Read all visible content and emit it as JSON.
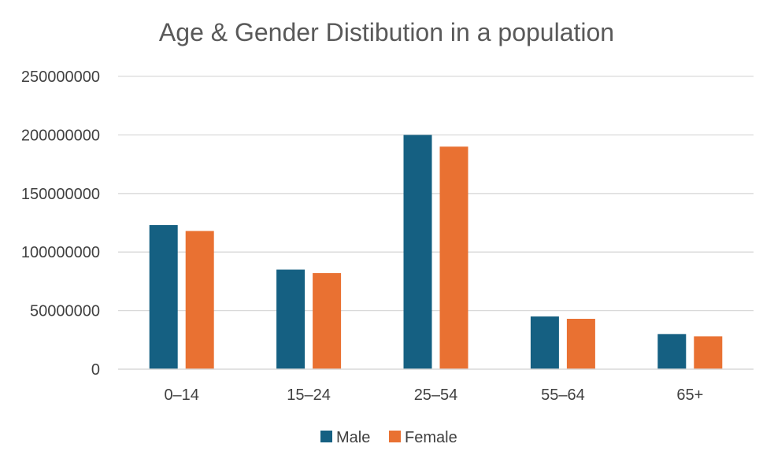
{
  "chart_data": {
    "type": "bar",
    "title": "Age & Gender Distibution in a population",
    "xlabel": "",
    "ylabel": "",
    "categories": [
      "0–14",
      "15–24",
      "25–54",
      "55–64",
      "65+"
    ],
    "series": [
      {
        "name": "Male",
        "color": "#156082",
        "values": [
          123000000,
          85000000,
          200000000,
          45000000,
          30000000
        ]
      },
      {
        "name": "Female",
        "color": "#E97132",
        "values": [
          118000000,
          82000000,
          190000000,
          43000000,
          28000000
        ]
      }
    ],
    "ylim": [
      0,
      250000000
    ],
    "yticks": [
      "0",
      "50000000",
      "100000000",
      "150000000",
      "200000000",
      "250000000"
    ],
    "grid": true,
    "legend_position": "bottom",
    "gridline_color": "#D9D9D9"
  }
}
